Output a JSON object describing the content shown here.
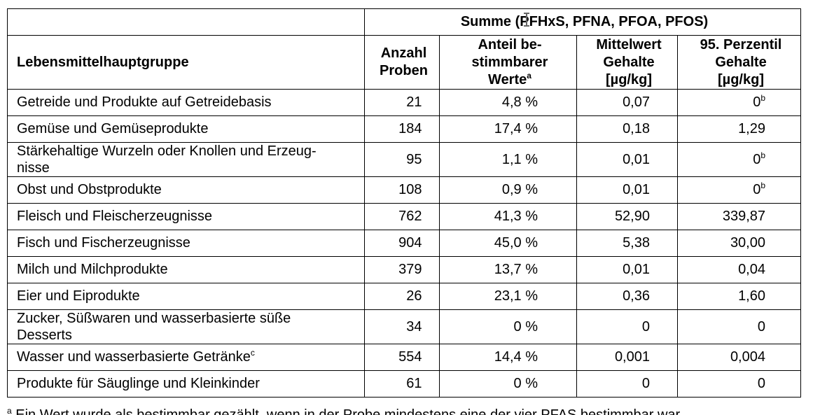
{
  "table": {
    "group_header": "Summe (PFHxS, PFNA, PFOA, PFOS)",
    "columns": {
      "category": "Lebensmittelhauptgruppe",
      "count_line1": "Anzahl",
      "count_line2": "Proben",
      "share_line1": "Anteil be-",
      "share_line2": "stimmbarer",
      "share_line3": "Werte",
      "share_sup": "a",
      "mean_line1": "Mittelwert",
      "mean_line2": "Gehalte",
      "mean_line3": "[µg/kg]",
      "p95_line1": "95. Perzentil",
      "p95_line2": "Gehalte",
      "p95_line3": "[µg/kg]"
    },
    "rows": [
      {
        "category": "Getreide und Produkte auf Getreidebasis",
        "count": "21",
        "share": "4,8 %",
        "mean": "0,07",
        "p95": "0",
        "p95_sup": "b"
      },
      {
        "category": "Gemüse und Gemüseprodukte",
        "count": "184",
        "share": "17,4 %",
        "mean": "0,18",
        "p95": "1,29"
      },
      {
        "category_line1": "Stärkehaltige Wurzeln oder Knollen und Erzeug-",
        "category_line2": "nisse",
        "count": "95",
        "share": "1,1 %",
        "mean": "0,01",
        "p95": "0",
        "p95_sup": "b"
      },
      {
        "category": "Obst und Obstprodukte",
        "count": "108",
        "share": "0,9 %",
        "mean": "0,01",
        "p95": "0",
        "p95_sup": "b"
      },
      {
        "category": "Fleisch und Fleischerzeugnisse",
        "count": "762",
        "share": "41,3 %",
        "mean": "52,90",
        "p95": "339,87"
      },
      {
        "category": "Fisch und Fischerzeugnisse",
        "count": "904",
        "share": "45,0 %",
        "mean": "5,38",
        "p95": "30,00"
      },
      {
        "category": "Milch und Milchprodukte",
        "count": "379",
        "share": "13,7 %",
        "mean": "0,01",
        "p95": "0,04"
      },
      {
        "category": "Eier und Eiprodukte",
        "count": "26",
        "share": "23,1 %",
        "mean": "0,36",
        "p95": "1,60"
      },
      {
        "category_line1": "Zucker, Süßwaren und wasserbasierte süße",
        "category_line2": "Desserts",
        "count": "34",
        "share": "0 %",
        "mean": "0",
        "p95": "0"
      },
      {
        "category": "Wasser und wasserbasierte Getränke",
        "category_sup": "c",
        "count": "554",
        "share": "14,4 %",
        "mean": "0,001",
        "p95": "0,004"
      },
      {
        "category": "Produkte für Säuglinge und Kleinkinder",
        "count": "61",
        "share": "0 %",
        "mean": "0",
        "p95": "0"
      }
    ]
  },
  "footnote": {
    "marker": "a",
    "text": " Ein Wert wurde als bestimmbar gezählt, wenn in der Probe mindestens eine der vier PFAS bestimmbar war."
  },
  "cursor": {
    "icon": "text-cursor-icon"
  }
}
